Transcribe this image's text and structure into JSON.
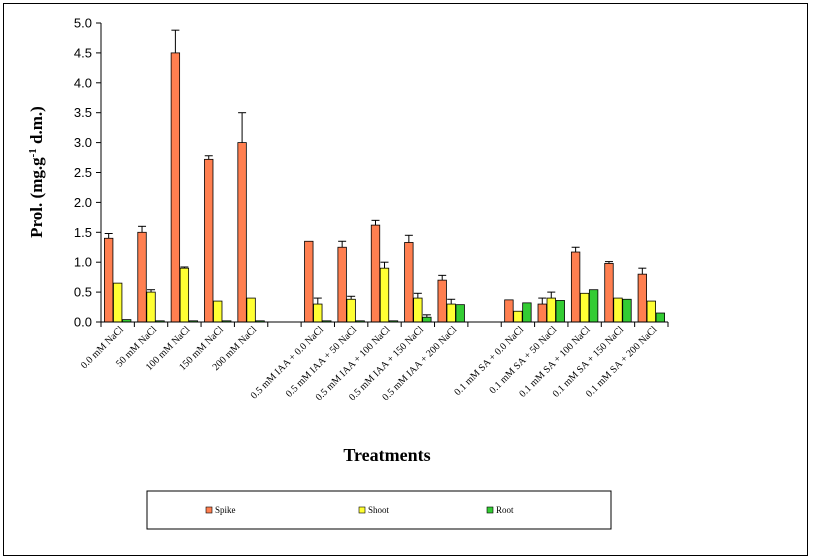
{
  "chart_data": {
    "type": "bar",
    "title": "",
    "xlabel": "Treatments",
    "ylabel": "Prol. (mg.g",
    "ylabel_sup": "-1",
    "ylabel_tail": " d.m.)",
    "ylim": [
      0,
      5.0
    ],
    "yticks": [
      "0.0",
      "0.5",
      "1.0",
      "1.5",
      "2.0",
      "2.5",
      "3.0",
      "3.5",
      "4.0",
      "4.5",
      "5.0"
    ],
    "grid": false,
    "legend_position": "bottom",
    "categories": [
      "0.0 mM NaCl",
      "50 mM NaCl",
      "100 mM NaCl",
      "150 mM NaCl",
      "200 mM NaCl",
      "",
      "0.5 mM IAA + 0.0 NaCl",
      "0.5 mM IAA + 50 NaCl",
      "0.5 mM IAA + 100 NaCl",
      "0.5 mM IAA + 150 NaCl",
      "0.5 mM IAA + 200 NaCl",
      "",
      "0.1 mM SA + 0.0 NaCl",
      "0.1 mM SA + 50 NaCl",
      "0.1 mM SA + 100 NaCl",
      "0.1 mM SA + 150 NaCl",
      "0.1 mM SA + 200 NaCl"
    ],
    "series": [
      {
        "name": "Spike",
        "color": "#ff7f50",
        "values": [
          1.4,
          1.5,
          4.5,
          2.72,
          3.0,
          null,
          1.35,
          1.25,
          1.62,
          1.33,
          0.7,
          null,
          0.37,
          0.3,
          1.17,
          0.98,
          0.8
        ],
        "errors": [
          0.08,
          0.1,
          0.38,
          0.06,
          0.5,
          null,
          0.0,
          0.1,
          0.08,
          0.12,
          0.08,
          null,
          0.0,
          0.1,
          0.08,
          0.03,
          0.1
        ]
      },
      {
        "name": "Shoot",
        "color": "#ffff33",
        "values": [
          0.65,
          0.5,
          0.9,
          0.35,
          0.4,
          null,
          0.3,
          0.38,
          0.9,
          0.4,
          0.3,
          null,
          0.18,
          0.4,
          0.48,
          0.4,
          0.35
        ],
        "errors": [
          0.0,
          0.04,
          0.02,
          0.0,
          0.0,
          null,
          0.1,
          0.05,
          0.1,
          0.08,
          0.08,
          null,
          0.0,
          0.1,
          0.0,
          0.0,
          0.0
        ]
      },
      {
        "name": "Root",
        "color": "#33cc33",
        "values": [
          0.04,
          0.02,
          0.02,
          0.02,
          0.02,
          null,
          0.02,
          0.02,
          0.02,
          0.08,
          0.29,
          null,
          0.32,
          0.36,
          0.54,
          0.38,
          0.15
        ],
        "errors": [
          0.0,
          0.0,
          0.0,
          0.0,
          0.0,
          null,
          0.0,
          0.0,
          0.0,
          0.04,
          0.0,
          null,
          0.0,
          0.0,
          0.0,
          0.0,
          0.0
        ]
      }
    ]
  }
}
